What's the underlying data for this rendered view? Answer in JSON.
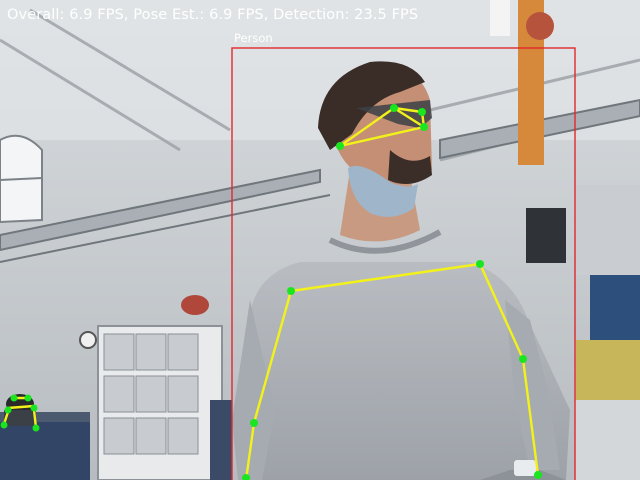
{
  "overlay": {
    "fps_text": "Overall: 6.9 FPS, Pose Est.: 6.9 FPS, Detection: 23.5 FPS",
    "detection_label": "Person"
  },
  "colors": {
    "bbox": "#e0282c",
    "skeleton_line": "#f2f21a",
    "keypoint": "#19e61f",
    "hud_text": "#ffffff"
  }
}
